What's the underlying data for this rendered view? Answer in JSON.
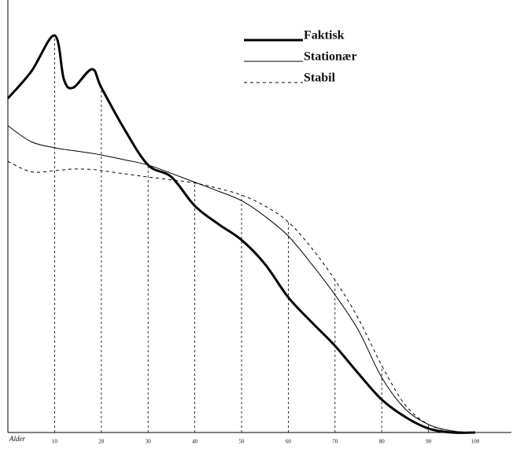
{
  "chart_data": {
    "type": "line",
    "x_label": "Alder",
    "x": [
      0,
      5,
      10,
      12,
      14,
      18,
      20,
      25,
      30,
      35,
      40,
      45,
      50,
      55,
      60,
      65,
      70,
      75,
      80,
      85,
      90,
      95,
      100
    ],
    "series": [
      {
        "name": "Faktisk",
        "color": "#000000",
        "width": 3,
        "dash": "none",
        "values": [
          83.3,
          90,
          99,
          88,
          86,
          90.6,
          86,
          75.5,
          66.7,
          63.7,
          56.5,
          52,
          48,
          42,
          33.7,
          27.5,
          21.6,
          14.7,
          8.2,
          3.9,
          1,
          0,
          0
        ]
      },
      {
        "name": "Stationær",
        "color": "#000000",
        "width": 1,
        "dash": "none",
        "values": [
          76.5,
          72.5,
          71,
          70.6,
          70.3,
          69.6,
          69.2,
          68,
          66.7,
          64.6,
          62.4,
          60.2,
          57.8,
          53.9,
          49,
          42,
          34.3,
          25.5,
          13.7,
          5.9,
          2,
          0.4,
          0
        ]
      },
      {
        "name": "Stabil",
        "color": "#000000",
        "width": 1,
        "dash": "4 4",
        "values": [
          67.6,
          65,
          65.3,
          65.5,
          65.7,
          65.6,
          65.3,
          64.5,
          63.7,
          63,
          62.2,
          60.9,
          59.2,
          56.5,
          52.5,
          46,
          38,
          28.4,
          16.7,
          6.9,
          2,
          0.4,
          0
        ]
      }
    ],
    "xlim": [
      0,
      100
    ],
    "xticks": [
      10,
      20,
      30,
      40,
      50,
      60,
      70,
      80,
      90,
      100
    ],
    "ylim": [
      0,
      100
    ],
    "legend": "upper right"
  }
}
